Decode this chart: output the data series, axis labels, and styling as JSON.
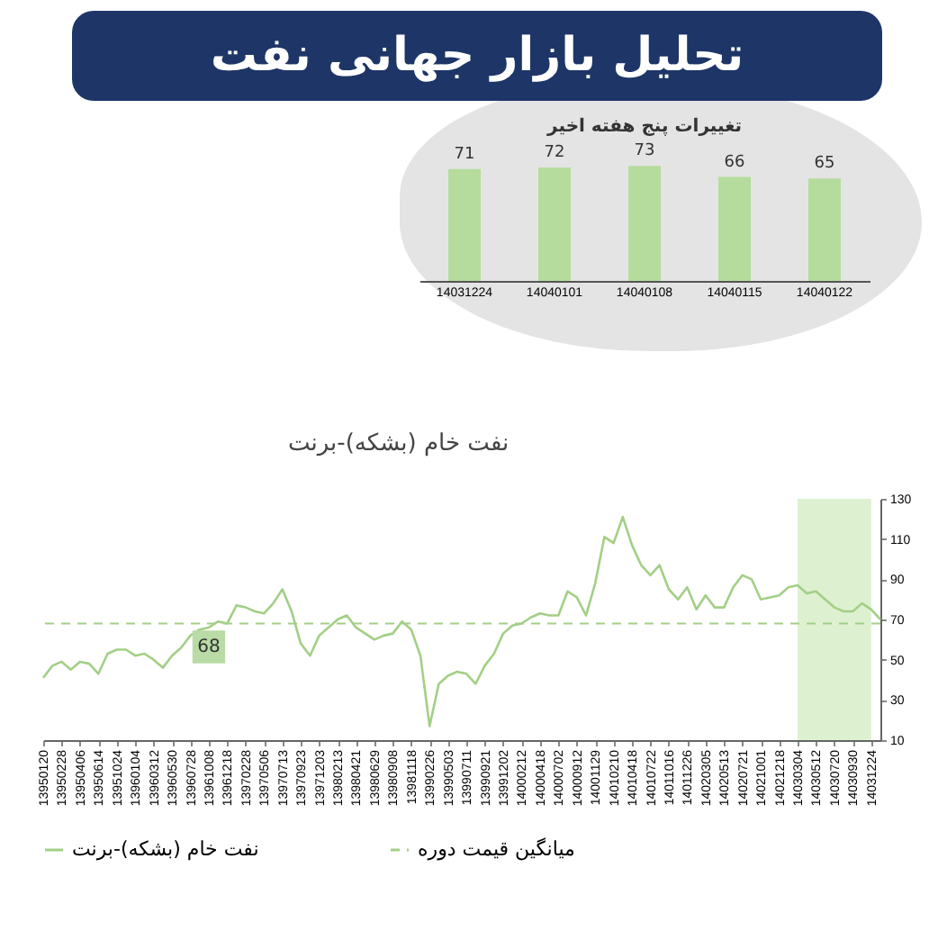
{
  "chart_data": [
    {
      "type": "bar",
      "title": "تحلیل بازار جهانی نفت",
      "subtitle": "تغییرات پنج هفته اخیر",
      "categories": [
        "14031224",
        "14040101",
        "14040108",
        "14040115",
        "14040122"
      ],
      "values": [
        71,
        72,
        73,
        66,
        65
      ],
      "color": "#b5dc9c",
      "tick_labels": "x",
      "data_labels": true,
      "grid": false
    },
    {
      "type": "line",
      "title": "نفت خام (بشکه)-برنت",
      "line_style": "solid",
      "categories": [
        "13950120",
        null,
        "13950228",
        null,
        "13950406",
        null,
        "13950614",
        null,
        "13951024",
        null,
        "13960104",
        null,
        "13960312",
        null,
        "13960530",
        null,
        "13960728",
        null,
        "13961008",
        null,
        "13961218",
        null,
        "13970228",
        null,
        "13970506",
        null,
        "13970713",
        null,
        "13970923",
        null,
        "13971203",
        null,
        "13980213",
        null,
        "13980421",
        null,
        "13980629",
        null,
        "13980908",
        null,
        "13981118",
        null,
        "13990226",
        null,
        "13990503",
        null,
        "13990711",
        null,
        "13990921",
        null,
        "13991202",
        null,
        "14000212",
        null,
        "14000418",
        null,
        "14000702",
        null,
        "14000912",
        null,
        "14001129",
        null,
        "14010210",
        null,
        "14010418",
        null,
        "14010722",
        null,
        "14011016",
        null,
        "14011226",
        null,
        "14020305",
        null,
        "14020513",
        null,
        "14020721",
        null,
        "14021001",
        null,
        "14021218",
        null,
        "14030304",
        null,
        "14030512",
        null,
        "14030720",
        null,
        "14030930",
        null,
        "14031224",
        null
      ],
      "series": [
        {
          "name": "نفت خام (بشکه)-برنت",
          "color": "#a3cf86",
          "values": [
            41,
            47,
            49,
            45,
            49,
            48,
            43,
            53,
            55,
            55,
            52,
            53,
            50,
            46,
            52,
            56,
            62,
            65,
            66,
            69,
            68,
            77,
            76,
            74,
            73,
            78,
            85,
            74,
            58,
            52,
            62,
            66,
            70,
            72,
            66,
            63,
            60,
            62,
            63,
            69,
            65,
            52,
            17,
            38,
            42,
            44,
            43,
            38,
            47,
            53,
            63,
            67,
            68,
            71,
            73,
            72,
            72,
            84,
            81,
            72,
            88,
            111,
            108,
            121,
            107,
            97,
            92,
            97,
            85,
            80,
            86,
            75,
            82,
            76,
            76,
            86,
            92,
            90,
            80,
            81,
            82,
            86,
            87,
            83,
            84,
            80,
            76,
            74,
            74,
            78,
            75,
            70
          ]
        }
      ],
      "ylim": [
        10,
        130
      ],
      "yticks": [
        10,
        30,
        50,
        70,
        90,
        110,
        130
      ],
      "grid": false,
      "legend": "bottom",
      "ref_lines": [
        {
          "axis": "y",
          "value": 68,
          "label": "میانگین قیمت دوره",
          "color": "#a3cf86",
          "line_style": "dashed"
        }
      ],
      "bands": [
        {
          "axis": "x",
          "from": "14030304",
          "to": "14031224",
          "color": "#d9efcb"
        }
      ],
      "annotations": [
        {
          "text": "68",
          "x": "13961008",
          "y": 68
        }
      ]
    }
  ]
}
